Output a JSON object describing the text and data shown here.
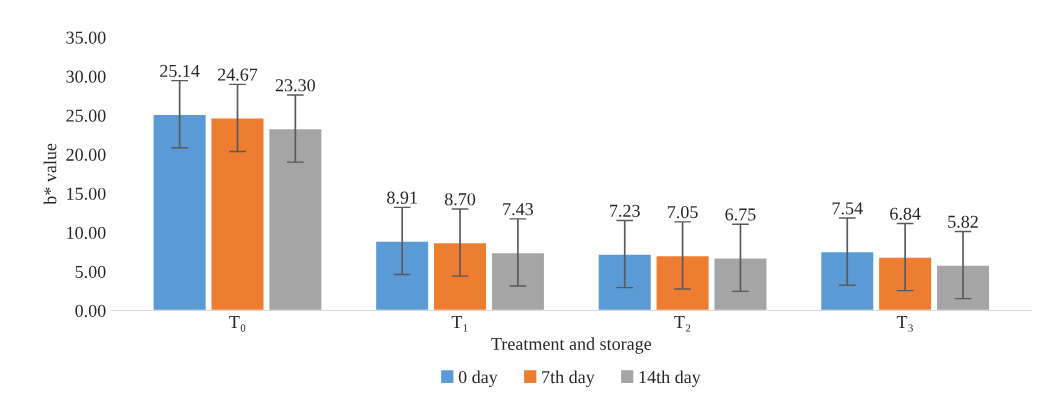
{
  "chart_data": {
    "type": "bar",
    "xlabel": "Treatment and storage",
    "ylabel": "b* value",
    "categories": [
      "T₀",
      "T₁",
      "T₂",
      "T₃"
    ],
    "series": [
      {
        "name": "0 day",
        "color": "#5b9bd5",
        "values": [
          25.14,
          8.91,
          7.23,
          7.54
        ],
        "value_labels": [
          "25.14",
          "8.91",
          "7.23",
          "7.54"
        ],
        "errors": [
          4.3,
          4.3,
          4.3,
          4.3
        ]
      },
      {
        "name": "7th day",
        "color": "#ed7d31",
        "values": [
          24.67,
          8.7,
          7.05,
          6.84
        ],
        "value_labels": [
          "24.67",
          "8.70",
          "7.05",
          "6.84"
        ],
        "errors": [
          4.3,
          4.3,
          4.3,
          4.3
        ]
      },
      {
        "name": "14th day",
        "color": "#a5a5a5",
        "values": [
          23.3,
          7.43,
          6.75,
          5.82
        ],
        "value_labels": [
          "23.30",
          "7.43",
          "6.75",
          "5.82"
        ],
        "errors": [
          4.3,
          4.3,
          4.3,
          4.3
        ]
      }
    ],
    "ylim": [
      0,
      35
    ],
    "yticks": [
      {
        "value": 0,
        "label": "0.00"
      },
      {
        "value": 5,
        "label": "5.00"
      },
      {
        "value": 10,
        "label": "10.00"
      },
      {
        "value": 15,
        "label": "15.00"
      },
      {
        "value": 20,
        "label": "20.00"
      },
      {
        "value": 25,
        "label": "25.00"
      },
      {
        "value": 30,
        "label": "30.00"
      },
      {
        "value": 35,
        "label": "35.00"
      }
    ],
    "grid": false,
    "legend": "bottom"
  }
}
